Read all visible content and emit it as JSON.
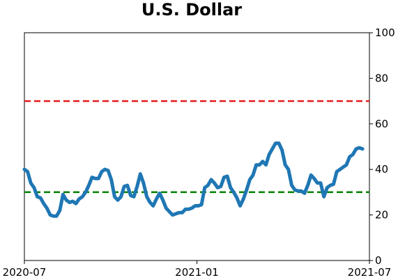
{
  "chart_data": {
    "type": "line",
    "title": "U.S. Dollar",
    "xlim": [
      "2020-07",
      "2021-07"
    ],
    "xticks": [
      "2020-07",
      "2021-01",
      "2021-07"
    ],
    "ylim": [
      0,
      100
    ],
    "yticks": [
      0,
      20,
      40,
      60,
      80,
      100
    ],
    "y_axis_side": "right",
    "series": [
      {
        "color": "#1f77b4",
        "values": [
          40,
          39,
          34,
          32,
          28,
          27.5,
          25,
          23,
          20,
          19.5,
          19.5,
          22,
          29,
          26.5,
          25.5,
          26,
          25,
          27,
          28,
          30,
          33,
          36.5,
          36,
          36,
          39,
          40,
          39.5,
          35.5,
          28,
          26.5,
          28,
          32.5,
          33,
          28.5,
          28,
          32.5,
          38,
          34,
          28,
          25.5,
          24,
          27,
          29.5,
          26.5,
          23,
          21.5,
          20,
          20.5,
          21,
          21,
          22.5,
          22.5,
          23,
          24,
          24,
          24.5,
          32,
          33,
          35.5,
          34,
          32,
          32.5,
          36.5,
          37,
          32,
          30,
          27.5,
          24,
          27,
          31,
          35.5,
          37.5,
          42,
          42,
          43.5,
          42,
          46.5,
          49,
          51.5,
          51.5,
          48.5,
          42,
          40,
          33,
          31,
          30.5,
          30.5,
          29.5,
          33,
          37.5,
          36,
          34,
          34,
          28,
          32,
          33,
          33.5,
          39,
          40,
          41,
          42,
          45.5,
          46.5,
          49,
          49.5,
          49
        ]
      }
    ],
    "reference_lines": [
      {
        "value": 70,
        "color": "#e31a1c",
        "style": "dashed"
      },
      {
        "value": 30,
        "color": "#008000",
        "style": "dashed"
      }
    ]
  }
}
